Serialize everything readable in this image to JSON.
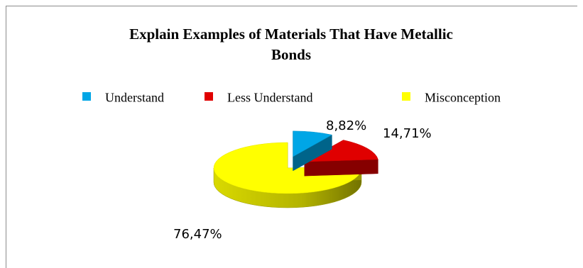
{
  "chart_data": {
    "type": "pie",
    "title": "Explain Examples of Materials That Have Metallic Bonds",
    "title_lines": [
      "Explain Examples of Materials That Have Metallic",
      "Bonds"
    ],
    "categories": [
      "Understand",
      "Less Understand",
      "Misconception"
    ],
    "values": [
      8.82,
      14.71,
      76.47
    ],
    "data_labels": [
      "8,82%",
      "14,71%",
      "76,47%"
    ],
    "colors": [
      "#00a6e6",
      "#e00000",
      "#ffff00"
    ],
    "legend_position": "top",
    "style": "3d-exploded"
  }
}
